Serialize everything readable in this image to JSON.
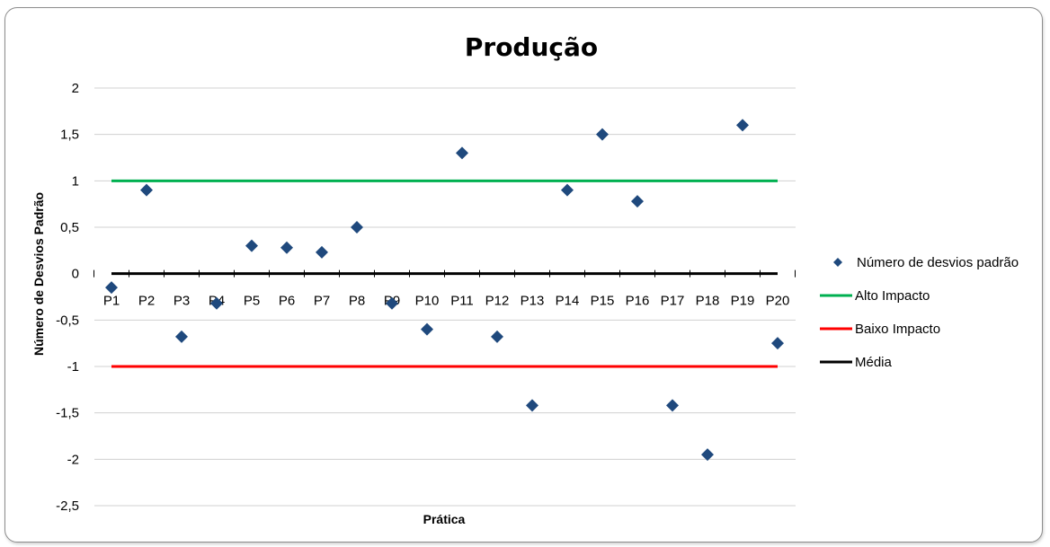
{
  "chart_data": {
    "type": "scatter",
    "title": "Produção",
    "xlabel": "Prática",
    "ylabel": "Número de Desvios Padrão",
    "categories": [
      "P1",
      "P2",
      "P3",
      "P4",
      "P5",
      "P6",
      "P7",
      "P8",
      "P9",
      "P10",
      "P11",
      "P12",
      "P13",
      "P14",
      "P15",
      "P16",
      "P17",
      "P18",
      "P19",
      "P20"
    ],
    "ylim": [
      -2.5,
      2
    ],
    "y_ticks": [
      2,
      1.5,
      1,
      0.5,
      0,
      -0.5,
      -1,
      -1.5,
      -2,
      -2.5
    ],
    "y_tick_labels": [
      "2",
      "1,5",
      "1",
      "0,5",
      "0",
      "-0,5",
      "-1",
      "-1,5",
      "-2",
      "-2,5"
    ],
    "grid": true,
    "legend_position": "right",
    "series": [
      {
        "name": "Número de desvios padrão",
        "kind": "markers",
        "marker": "diamond",
        "color": "#1f497d",
        "values": [
          -0.15,
          0.9,
          -0.68,
          -0.32,
          0.3,
          0.28,
          0.23,
          0.5,
          -0.32,
          -0.6,
          1.3,
          -0.68,
          -1.42,
          0.9,
          1.5,
          0.78,
          -1.42,
          -1.95,
          1.6,
          -0.75
        ]
      },
      {
        "name": "Alto Impacto",
        "kind": "line",
        "color": "#00b050",
        "value": 1
      },
      {
        "name": "Baixo Impacto",
        "kind": "line",
        "color": "#ff0000",
        "value": -1
      },
      {
        "name": "Média",
        "kind": "line",
        "color": "#000000",
        "value": 0
      }
    ]
  }
}
